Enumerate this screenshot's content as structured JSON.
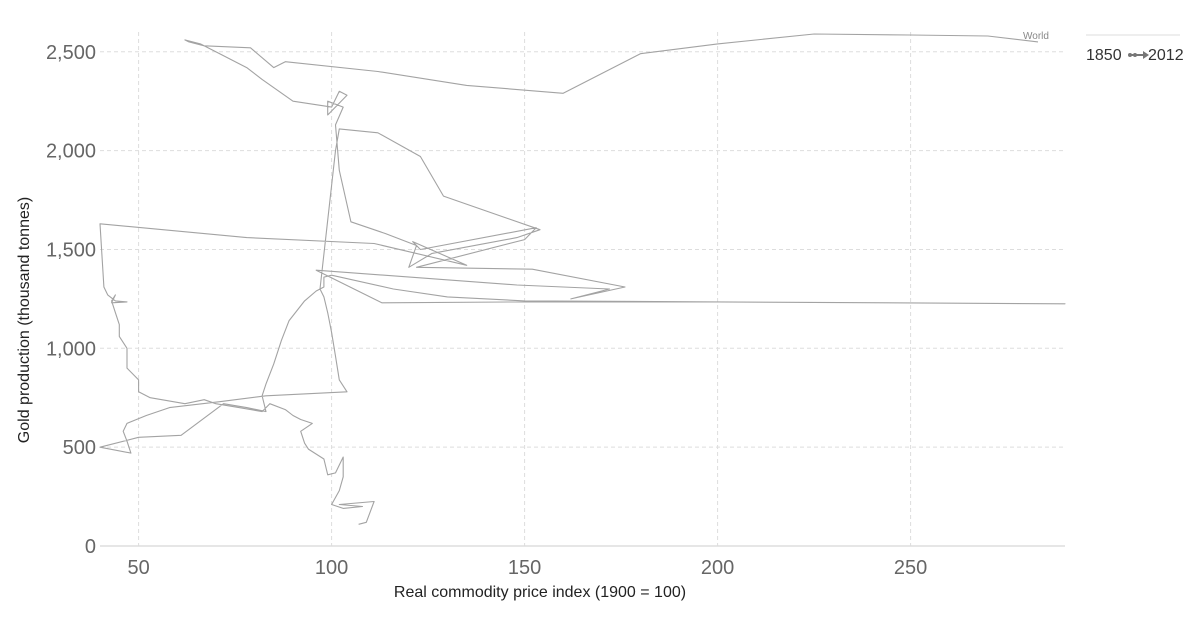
{
  "chart_data": {
    "type": "line",
    "subtype": "connected-scatter",
    "title": "",
    "xlabel": "Real commodity price index (1900 = 100)",
    "ylabel": "Gold production (thousand tonnes)",
    "xlim": [
      40,
      290
    ],
    "ylim": [
      0,
      2600
    ],
    "x_ticks": [
      50,
      100,
      150,
      200,
      250
    ],
    "y_ticks": [
      0,
      500,
      1000,
      1500,
      2000,
      2500
    ],
    "x_tick_labels": [
      "50",
      "100",
      "150",
      "200",
      "250"
    ],
    "y_tick_labels": [
      "0",
      "500",
      "1,000",
      "1,500",
      "2,000",
      "2,500"
    ],
    "grid": true,
    "legend": {
      "start": "1850",
      "end": "2012",
      "placement": "top-right"
    },
    "series": [
      {
        "name": "World",
        "color": "#a3a3a3",
        "points": [
          [
            107,
            110
          ],
          [
            109,
            120
          ],
          [
            111,
            225
          ],
          [
            102,
            210
          ],
          [
            108,
            200
          ],
          [
            103,
            190
          ],
          [
            100,
            210
          ],
          [
            102,
            280
          ],
          [
            103,
            350
          ],
          [
            103,
            450
          ],
          [
            101,
            370
          ],
          [
            99,
            360
          ],
          [
            98,
            440
          ],
          [
            94,
            490
          ],
          [
            93,
            520
          ],
          [
            92,
            580
          ],
          [
            95,
            620
          ],
          [
            92,
            640
          ],
          [
            90,
            660
          ],
          [
            88,
            690
          ],
          [
            84,
            720
          ],
          [
            82,
            680
          ],
          [
            76,
            700
          ],
          [
            70,
            720
          ],
          [
            67,
            740
          ],
          [
            62,
            720
          ],
          [
            53,
            750
          ],
          [
            50,
            780
          ],
          [
            50,
            840
          ],
          [
            47,
            900
          ],
          [
            47,
            1000
          ],
          [
            45,
            1060
          ],
          [
            45,
            1120
          ],
          [
            44,
            1180
          ],
          [
            43,
            1240
          ],
          [
            44,
            1270
          ],
          [
            43,
            1230
          ],
          [
            47,
            1235
          ],
          [
            44,
            1240
          ],
          [
            42,
            1270
          ],
          [
            41,
            1310
          ],
          [
            40,
            1630
          ],
          [
            78,
            1560
          ],
          [
            111,
            1530
          ],
          [
            135,
            1420
          ],
          [
            121,
            1540
          ],
          [
            123,
            1500
          ],
          [
            153,
            1610
          ],
          [
            150,
            1550
          ],
          [
            122,
            1410
          ],
          [
            152,
            1400
          ],
          [
            176,
            1310
          ],
          [
            162,
            1250
          ],
          [
            172,
            1300
          ],
          [
            148,
            1320
          ],
          [
            96,
            1395
          ],
          [
            113,
            1230
          ],
          [
            150,
            1235
          ],
          [
            200,
            1235
          ],
          [
            290,
            1225
          ],
          [
            200,
            1235
          ],
          [
            150,
            1240
          ],
          [
            130,
            1260
          ],
          [
            116,
            1300
          ],
          [
            100,
            1370
          ],
          [
            98,
            1360
          ],
          [
            98,
            1310
          ],
          [
            96,
            1290
          ],
          [
            93,
            1240
          ],
          [
            89,
            1140
          ],
          [
            87,
            1040
          ],
          [
            85,
            920
          ],
          [
            83,
            820
          ],
          [
            82,
            760
          ],
          [
            83,
            680
          ],
          [
            78,
            700
          ],
          [
            72,
            720
          ],
          [
            61,
            560
          ],
          [
            50,
            550
          ],
          [
            40,
            500
          ],
          [
            48,
            470
          ],
          [
            47,
            530
          ],
          [
            46,
            580
          ],
          [
            47,
            620
          ],
          [
            52,
            660
          ],
          [
            58,
            700
          ],
          [
            71,
            730
          ],
          [
            83,
            760
          ],
          [
            104,
            780
          ],
          [
            102,
            840
          ],
          [
            101,
            960
          ],
          [
            100,
            1080
          ],
          [
            99,
            1180
          ],
          [
            98,
            1260
          ],
          [
            97,
            1300
          ],
          [
            101,
            2000
          ],
          [
            102,
            2110
          ],
          [
            112,
            2090
          ],
          [
            123,
            1970
          ],
          [
            129,
            1770
          ],
          [
            154,
            1600
          ],
          [
            148,
            1560
          ],
          [
            126,
            1480
          ],
          [
            120,
            1410
          ],
          [
            122,
            1520
          ],
          [
            114,
            1580
          ],
          [
            105,
            1640
          ],
          [
            102,
            1900
          ],
          [
            101,
            2130
          ],
          [
            103,
            2220
          ],
          [
            99,
            2250
          ],
          [
            99,
            2180
          ],
          [
            104,
            2280
          ],
          [
            102,
            2300
          ],
          [
            100,
            2220
          ],
          [
            90,
            2250
          ],
          [
            82,
            2360
          ],
          [
            78,
            2420
          ],
          [
            70,
            2500
          ],
          [
            66,
            2540
          ],
          [
            62,
            2560
          ],
          [
            63,
            2550
          ],
          [
            67,
            2530
          ],
          [
            79,
            2520
          ],
          [
            85,
            2420
          ],
          [
            88,
            2450
          ],
          [
            112,
            2400
          ],
          [
            135,
            2330
          ],
          [
            160,
            2290
          ],
          [
            180,
            2490
          ],
          [
            200,
            2540
          ],
          [
            225,
            2590
          ],
          [
            250,
            2585
          ],
          [
            270,
            2580
          ],
          [
            283,
            2550
          ]
        ]
      }
    ]
  }
}
